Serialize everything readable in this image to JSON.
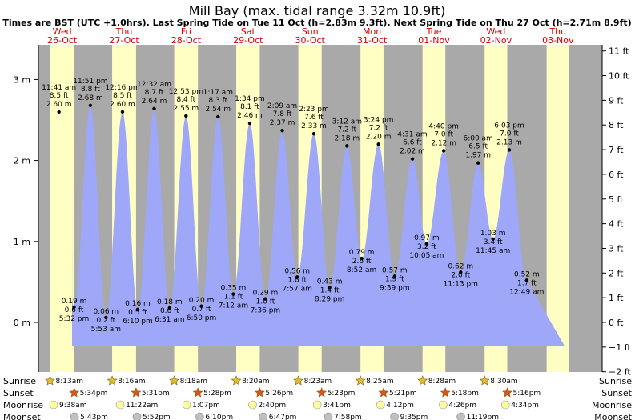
{
  "chart_data": {
    "type": "area",
    "title": "Mill Bay (max. tidal range 3.32m 10.9ft)",
    "subtitle": "Times are BST (UTC +1.0hrs). Last Spring Tide on Tue 11 Oct (h=2.83m 9.3ft). Next Spring Tide on Thu 27 Oct (h=2.71m 8.9ft)",
    "days": [
      {
        "weekday": "Wed",
        "date": "26-Oct"
      },
      {
        "weekday": "Thu",
        "date": "27-Oct"
      },
      {
        "weekday": "Fri",
        "date": "28-Oct"
      },
      {
        "weekday": "Sat",
        "date": "29-Oct"
      },
      {
        "weekday": "Sun",
        "date": "30-Oct"
      },
      {
        "weekday": "Mon",
        "date": "31-Oct"
      },
      {
        "weekday": "Tue",
        "date": "01-Nov"
      },
      {
        "weekday": "Wed",
        "date": "02-Nov"
      },
      {
        "weekday": "Thu",
        "date": "03-Nov"
      }
    ],
    "left_axis": {
      "unit": "m",
      "ticks": [
        "3 m",
        "2 m",
        "1 m",
        "0 m"
      ],
      "values": [
        3,
        2,
        1,
        0
      ]
    },
    "right_axis": {
      "unit": "ft",
      "ticks": [
        "11 ft",
        "10 ft",
        "9 ft",
        "8 ft",
        "7 ft",
        "6 ft",
        "5 ft",
        "4 ft",
        "3 ft",
        "2 ft",
        "1 ft",
        "0 ft",
        "−1 ft",
        "−2 ft"
      ],
      "values": [
        11,
        10,
        9,
        8,
        7,
        6,
        5,
        4,
        3,
        2,
        1,
        0,
        -1,
        -2
      ]
    },
    "ylim_m": [
      -0.6,
      3.3
    ],
    "tides": [
      {
        "type": "high",
        "time": "11:41 am",
        "ft": "8.5 ft",
        "m": "2.60 m",
        "day": 0,
        "hour": 11.68,
        "h": 2.6
      },
      {
        "type": "low",
        "time": "5:32 pm",
        "ft": "0.6 ft",
        "m": "0.19 m",
        "day": 0,
        "hour": 17.53,
        "h": 0.19
      },
      {
        "type": "high",
        "time": "11:51 pm",
        "ft": "8.8 ft",
        "m": "2.68 m",
        "day": 0,
        "hour": 23.85,
        "h": 2.68
      },
      {
        "type": "low",
        "time": "5:53 am",
        "ft": "0.2 ft",
        "m": "0.06 m",
        "day": 1,
        "hour": 5.88,
        "h": 0.06
      },
      {
        "type": "high",
        "time": "12:16 pm",
        "ft": "8.5 ft",
        "m": "2.60 m",
        "day": 1,
        "hour": 12.27,
        "h": 2.6
      },
      {
        "type": "low",
        "time": "6:10 pm",
        "ft": "0.5 ft",
        "m": "0.16 m",
        "day": 1,
        "hour": 18.17,
        "h": 0.16
      },
      {
        "type": "high",
        "time": "12:32 am",
        "ft": "8.7 ft",
        "m": "2.64 m",
        "day": 2,
        "hour": 0.53,
        "h": 2.64
      },
      {
        "type": "low",
        "time": "6:31 am",
        "ft": "0.6 ft",
        "m": "0.18 m",
        "day": 2,
        "hour": 6.52,
        "h": 0.18
      },
      {
        "type": "high",
        "time": "12:53 pm",
        "ft": "8.4 ft",
        "m": "2.55 m",
        "day": 2,
        "hour": 12.88,
        "h": 2.55
      },
      {
        "type": "low",
        "time": "6:50 pm",
        "ft": "0.7 ft",
        "m": "0.20 m",
        "day": 2,
        "hour": 18.83,
        "h": 0.2
      },
      {
        "type": "high",
        "time": "1:17 am",
        "ft": "8.3 ft",
        "m": "2.54 m",
        "day": 3,
        "hour": 1.28,
        "h": 2.54
      },
      {
        "type": "low",
        "time": "7:12 am",
        "ft": "1.1 ft",
        "m": "0.35 m",
        "day": 3,
        "hour": 7.2,
        "h": 0.35
      },
      {
        "type": "high",
        "time": "1:34 pm",
        "ft": "8.1 ft",
        "m": "2.46 m",
        "day": 3,
        "hour": 13.57,
        "h": 2.46
      },
      {
        "type": "low",
        "time": "7:36 pm",
        "ft": "1.0 ft",
        "m": "0.29 m",
        "day": 3,
        "hour": 19.6,
        "h": 0.29
      },
      {
        "type": "high",
        "time": "2:09 am",
        "ft": "7.8 ft",
        "m": "2.37 m",
        "day": 4,
        "hour": 2.15,
        "h": 2.37
      },
      {
        "type": "low",
        "time": "7:57 am",
        "ft": "1.8 ft",
        "m": "0.56 m",
        "day": 4,
        "hour": 7.95,
        "h": 0.56
      },
      {
        "type": "high",
        "time": "2:23 pm",
        "ft": "7.6 ft",
        "m": "2.33 m",
        "day": 4,
        "hour": 14.38,
        "h": 2.33
      },
      {
        "type": "low",
        "time": "8:29 pm",
        "ft": "1.4 ft",
        "m": "0.43 m",
        "day": 4,
        "hour": 20.48,
        "h": 0.43
      },
      {
        "type": "high",
        "time": "3:12 am",
        "ft": "7.2 ft",
        "m": "2.18 m",
        "day": 5,
        "hour": 3.2,
        "h": 2.18
      },
      {
        "type": "low",
        "time": "8:52 am",
        "ft": "2.6 ft",
        "m": "0.79 m",
        "day": 5,
        "hour": 8.87,
        "h": 0.79
      },
      {
        "type": "high",
        "time": "3:24 pm",
        "ft": "7.2 ft",
        "m": "2.20 m",
        "day": 5,
        "hour": 15.4,
        "h": 2.2
      },
      {
        "type": "low",
        "time": "9:39 pm",
        "ft": "1.9 ft",
        "m": "0.57 m",
        "day": 5,
        "hour": 21.65,
        "h": 0.57
      },
      {
        "type": "high",
        "time": "4:31 am",
        "ft": "6.6 ft",
        "m": "2.02 m",
        "day": 6,
        "hour": 4.52,
        "h": 2.02
      },
      {
        "type": "low",
        "time": "10:05 am",
        "ft": "3.2 ft",
        "m": "0.97 m",
        "day": 6,
        "hour": 10.08,
        "h": 0.97
      },
      {
        "type": "high",
        "time": "4:40 pm",
        "ft": "7.0 ft",
        "m": "2.12 m",
        "day": 6,
        "hour": 16.67,
        "h": 2.12
      },
      {
        "type": "low",
        "time": "11:13 pm",
        "ft": "2.0 ft",
        "m": "0.62 m",
        "day": 6,
        "hour": 23.22,
        "h": 0.62
      },
      {
        "type": "high",
        "time": "6:00 am",
        "ft": "6.5 ft",
        "m": "1.97 m",
        "day": 7,
        "hour": 6.0,
        "h": 1.97
      },
      {
        "type": "low",
        "time": "11:45 am",
        "ft": "3.4 ft",
        "m": "1.03 m",
        "day": 7,
        "hour": 11.75,
        "h": 1.03
      },
      {
        "type": "high",
        "time": "6:03 pm",
        "ft": "7.0 ft",
        "m": "2.13 m",
        "day": 7,
        "hour": 18.05,
        "h": 2.13
      },
      {
        "type": "low",
        "time": "12:49 am",
        "ft": "1.7 ft",
        "m": "0.52 m",
        "day": 8,
        "hour": 0.82,
        "h": 0.52
      }
    ],
    "almanac": {
      "row_labels": [
        "Sunrise",
        "Sunset",
        "Moonrise",
        "Moonset"
      ],
      "sunrise": [
        "8:13am",
        "8:16am",
        "8:18am",
        "8:20am",
        "8:23am",
        "8:25am",
        "8:28am",
        "8:30am"
      ],
      "sunset": [
        "5:34pm",
        "5:31pm",
        "5:28pm",
        "5:26pm",
        "5:23pm",
        "5:21pm",
        "5:18pm",
        "5:16pm"
      ],
      "moonrise": [
        "9:38am",
        "11:22am",
        "1:07pm",
        "2:40pm",
        "3:41pm",
        "4:12pm",
        "4:26pm",
        "4:34pm"
      ],
      "moonset": [
        "5:43pm",
        "5:52pm",
        "6:10pm",
        "6:47pm",
        "7:58pm",
        "9:35pm",
        "11:19pm"
      ],
      "sunrise_h": [
        8.22,
        8.27,
        8.3,
        8.33,
        8.38,
        8.42,
        8.47,
        8.5
      ],
      "sunset_h": [
        17.57,
        17.52,
        17.47,
        17.43,
        17.38,
        17.35,
        17.3,
        17.27
      ],
      "moonrise_h": [
        9.63,
        11.37,
        13.12,
        14.67,
        15.68,
        16.2,
        16.43,
        16.57
      ],
      "moonset_h": [
        17.72,
        17.87,
        18.17,
        18.78,
        19.97,
        21.58,
        23.32
      ]
    },
    "colors": {
      "night": "#a9a9a9",
      "day": "#ffffc4",
      "water": "#9ea7f8",
      "day_label": "#d40000",
      "sun_icon": "#e0c030",
      "sunset_icon": "#e05020",
      "moon_light": "#ffff9c",
      "moon_dark": "#c0c0c0"
    }
  }
}
